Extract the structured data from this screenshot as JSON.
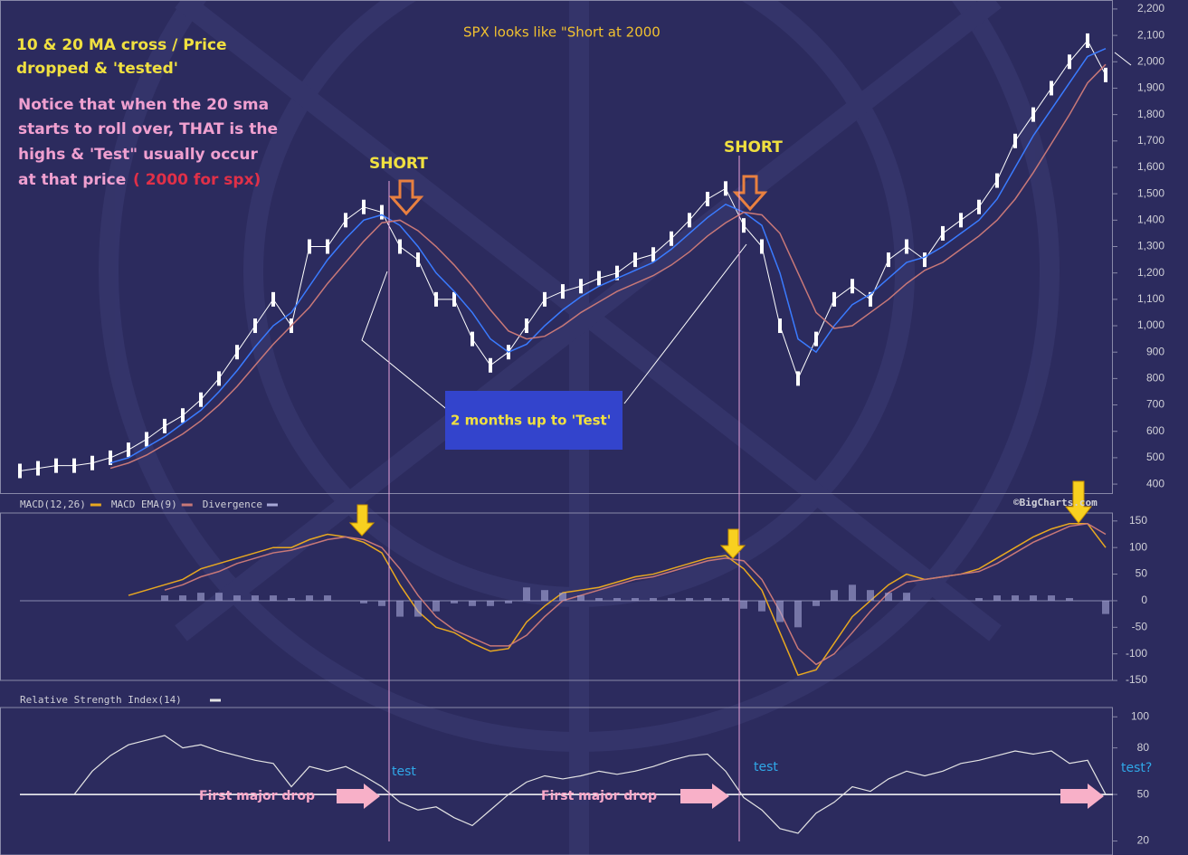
{
  "annotations": {
    "heading": [
      "10 & 20 MA cross /  Price",
      "dropped & 'tested'"
    ],
    "notice": [
      "Notice that when the 20 sma",
      "starts to roll over,  THAT is the",
      "highs & 'Test\" usually occur",
      "at that price"
    ],
    "notice_red": "( 2000 for spx)",
    "spx": "SPX looks like \"Short at 2000",
    "short": [
      "SHORT",
      "SHORT"
    ],
    "box": "2 months up to 'Test'",
    "test": [
      "test",
      "test",
      "test?"
    ],
    "drop": [
      "First major drop",
      "First major drop"
    ]
  },
  "chart_data": [
    {
      "type": "price",
      "watermark": "©BigCharts.com",
      "ylim": [
        366,
        2234
      ],
      "yticks": [
        400,
        500,
        600,
        700,
        800,
        900,
        {
          "value": 1000,
          "label": "1,000"
        },
        {
          "value": 1100,
          "label": "1,100"
        },
        {
          "value": 1200,
          "label": "1,200"
        },
        {
          "value": 1300,
          "label": "1,300"
        },
        {
          "value": 1400,
          "label": "1,400"
        },
        {
          "value": 1500,
          "label": "1,500"
        },
        {
          "value": 1600,
          "label": "1,600"
        },
        {
          "value": 1700,
          "label": "1,700"
        },
        {
          "value": 1800,
          "label": "1,800"
        },
        {
          "value": 1900,
          "label": "1,900"
        },
        {
          "value": 2000,
          "label": "2,000"
        },
        {
          "value": 2100,
          "label": "2,100"
        },
        {
          "value": 2200,
          "label": "2,200"
        }
      ],
      "series": [
        {
          "color": "#ffffff",
          "values": [
            450,
            460,
            470,
            470,
            480,
            500,
            530,
            570,
            620,
            660,
            720,
            800,
            900,
            1000,
            1100,
            1000,
            1300,
            1300,
            1400,
            1450,
            1430,
            1300,
            1250,
            1100,
            1100,
            950,
            850,
            900,
            1000,
            1100,
            1130,
            1150,
            1180,
            1200,
            1250,
            1270,
            1330,
            1400,
            1480,
            1520,
            1380,
            1300,
            1000,
            800,
            950,
            1100,
            1150,
            1100,
            1250,
            1300,
            1250,
            1350,
            1400,
            1450,
            1550,
            1700,
            1800,
            1900,
            2000,
            2080,
            1950
          ]
        },
        {
          "color": "#3a7bff",
          "values": [
            null,
            null,
            null,
            null,
            null,
            480,
            500,
            540,
            580,
            630,
            680,
            750,
            830,
            920,
            1000,
            1050,
            1150,
            1250,
            1330,
            1400,
            1420,
            1380,
            1300,
            1200,
            1130,
            1050,
            950,
            900,
            930,
            1000,
            1060,
            1110,
            1150,
            1180,
            1210,
            1240,
            1290,
            1350,
            1410,
            1460,
            1430,
            1380,
            1200,
            950,
            900,
            1000,
            1080,
            1120,
            1180,
            1240,
            1260,
            1300,
            1350,
            1400,
            1480,
            1600,
            1720,
            1820,
            1920,
            2020,
            2050
          ]
        },
        {
          "color": "#c87878",
          "values": [
            null,
            null,
            null,
            null,
            null,
            460,
            480,
            510,
            550,
            590,
            640,
            700,
            770,
            850,
            930,
            1000,
            1070,
            1160,
            1240,
            1320,
            1390,
            1400,
            1360,
            1300,
            1230,
            1150,
            1060,
            980,
            950,
            960,
            1000,
            1050,
            1090,
            1130,
            1160,
            1190,
            1230,
            1280,
            1340,
            1390,
            1430,
            1420,
            1350,
            1200,
            1050,
            990,
            1000,
            1050,
            1100,
            1160,
            1210,
            1240,
            1290,
            1340,
            1400,
            1480,
            1580,
            1690,
            1800,
            1920,
            1990
          ]
        }
      ]
    },
    {
      "type": "macd",
      "ylim": [
        -172,
        165
      ],
      "yticks": [
        150,
        100,
        50,
        0,
        -50,
        -100,
        -150
      ],
      "hline": 0,
      "series": [
        {
          "name": "MACD(12,26)",
          "color": "#e8a820",
          "values": [
            null,
            null,
            null,
            null,
            null,
            null,
            10,
            20,
            30,
            40,
            60,
            70,
            80,
            90,
            100,
            100,
            115,
            125,
            120,
            110,
            90,
            30,
            -20,
            -50,
            -60,
            -80,
            -95,
            -90,
            -40,
            -10,
            15,
            20,
            25,
            35,
            45,
            50,
            60,
            70,
            80,
            85,
            60,
            20,
            -60,
            -140,
            -130,
            -80,
            -30,
            0,
            30,
            50,
            40,
            45,
            50,
            60,
            80,
            100,
            120,
            135,
            145,
            145,
            100
          ]
        },
        {
          "name": "MACD EMA(9)",
          "color": "#c87878",
          "values": [
            null,
            null,
            null,
            null,
            null,
            null,
            null,
            null,
            20,
            30,
            45,
            55,
            70,
            80,
            90,
            95,
            105,
            115,
            120,
            115,
            100,
            60,
            10,
            -30,
            -55,
            -70,
            -85,
            -85,
            -65,
            -30,
            0,
            10,
            20,
            30,
            40,
            45,
            55,
            65,
            75,
            80,
            75,
            40,
            -20,
            -90,
            -120,
            -100,
            -60,
            -20,
            15,
            35,
            40,
            45,
            50,
            55,
            70,
            90,
            110,
            125,
            140,
            145,
            125
          ]
        },
        {
          "name": "Divergence",
          "color": "#a8a8d8",
          "kind": "bar",
          "values": [
            null,
            null,
            null,
            null,
            null,
            null,
            null,
            null,
            10,
            10,
            15,
            15,
            10,
            10,
            10,
            5,
            10,
            10,
            0,
            -5,
            -10,
            -30,
            -30,
            -20,
            -5,
            -10,
            -10,
            -5,
            25,
            20,
            15,
            10,
            5,
            5,
            5,
            5,
            5,
            5,
            5,
            5,
            -15,
            -20,
            -40,
            -50,
            -10,
            20,
            30,
            20,
            15,
            15,
            0,
            0,
            0,
            5,
            10,
            10,
            10,
            10,
            5,
            0,
            -25
          ]
        }
      ]
    },
    {
      "type": "line",
      "title": "Relative Strength Index(14)",
      "ylim": [
        11,
        106
      ],
      "yticks": [
        100,
        80,
        50,
        20
      ],
      "hline": 50,
      "series": [
        {
          "color": "#e4e4e4",
          "values": [
            null,
            null,
            null,
            50,
            65,
            75,
            82,
            85,
            88,
            80,
            82,
            78,
            75,
            72,
            70,
            55,
            68,
            65,
            68,
            62,
            55,
            45,
            40,
            42,
            35,
            30,
            40,
            50,
            58,
            62,
            60,
            62,
            65,
            63,
            65,
            68,
            72,
            75,
            76,
            65,
            48,
            40,
            28,
            25,
            38,
            45,
            55,
            52,
            60,
            65,
            62,
            65,
            70,
            72,
            75,
            78,
            76,
            78,
            70,
            72,
            50
          ]
        }
      ]
    }
  ]
}
